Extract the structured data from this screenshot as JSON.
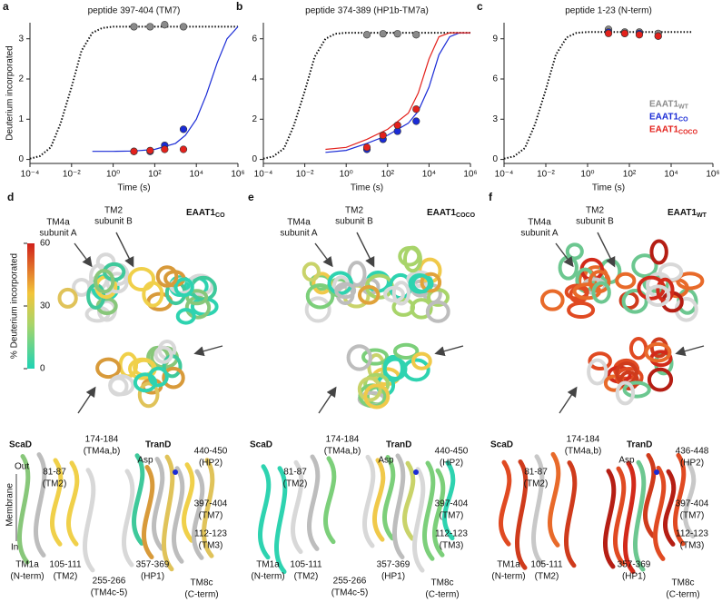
{
  "chart_data": [
    {
      "type": "scatter",
      "letter": "a",
      "title": "peptide 397-404 (TM7)",
      "x_label": "Time (s)",
      "y_label": "Deuterium incorporated",
      "xscale": "log",
      "xlim": [
        0.0001,
        1000000
      ],
      "xticks": [
        {
          "value": 0.0001,
          "label": "10⁻⁴"
        },
        {
          "value": 0.01,
          "label": "10⁻²"
        },
        {
          "value": 1,
          "label": "10⁰"
        },
        {
          "value": 100,
          "label": "10²"
        },
        {
          "value": 10000,
          "label": "10⁴"
        },
        {
          "value": 1000000,
          "label": "10⁶"
        }
      ],
      "ylim": [
        -0.1,
        3.4
      ],
      "yticks": [
        0,
        1,
        2,
        3
      ],
      "series": [
        {
          "name": "EAAT1",
          "subscript": "WT",
          "color": "#8a8a8a",
          "x": [
            10,
            60,
            300,
            2400
          ],
          "values": [
            3.3,
            3.3,
            3.35,
            3.3
          ]
        },
        {
          "name": "EAAT1",
          "subscript": "CO",
          "color": "#1a2bd6",
          "x": [
            10,
            60,
            300,
            2400
          ],
          "values": [
            0.2,
            0.2,
            0.35,
            0.75
          ]
        },
        {
          "name": "EAAT1",
          "subscript": "COCO",
          "color": "#e3211c",
          "x": [
            10,
            60,
            300,
            2400
          ],
          "values": [
            0.2,
            0.22,
            0.25,
            0.25
          ]
        }
      ],
      "fits": [
        {
          "color": "#111111",
          "dash": true,
          "x": [
            0.0001,
            0.0003,
            0.001,
            0.003,
            0.01,
            0.03,
            0.1,
            0.3,
            1,
            1000000
          ],
          "values": [
            0.02,
            0.08,
            0.3,
            0.9,
            1.8,
            2.7,
            3.15,
            3.27,
            3.3,
            3.3
          ]
        },
        {
          "color": "#1a2bd6",
          "dash": false,
          "x": [
            0.1,
            1,
            10,
            100,
            1000,
            3000,
            10000,
            30000,
            100000,
            300000,
            1000000
          ],
          "values": [
            0.2,
            0.2,
            0.21,
            0.25,
            0.4,
            0.6,
            1.0,
            1.6,
            2.4,
            3.0,
            3.3
          ]
        }
      ]
    },
    {
      "type": "scatter",
      "letter": "b",
      "title": "peptide 374-389 (HP1b-TM7a)",
      "x_label": "Time (s)",
      "xscale": "log",
      "xlim": [
        0.0001,
        1000000
      ],
      "xticks": [
        {
          "value": 0.0001,
          "label": "10⁻⁴"
        },
        {
          "value": 0.01,
          "label": "10⁻²"
        },
        {
          "value": 1,
          "label": "10⁰"
        },
        {
          "value": 100,
          "label": "10²"
        },
        {
          "value": 10000,
          "label": "10⁴"
        },
        {
          "value": 1000000,
          "label": "10⁶"
        }
      ],
      "ylim": [
        -0.2,
        6.8
      ],
      "yticks": [
        0,
        2,
        4,
        6
      ],
      "series": [
        {
          "name": "EAAT1",
          "subscript": "WT",
          "color": "#8a8a8a",
          "x": [
            10,
            60,
            300,
            2400
          ],
          "values": [
            6.2,
            6.25,
            6.25,
            6.2
          ]
        },
        {
          "name": "EAAT1",
          "subscript": "CO",
          "color": "#1a2bd6",
          "x": [
            10,
            60,
            300,
            2400
          ],
          "values": [
            0.5,
            1.0,
            1.4,
            1.9
          ]
        },
        {
          "name": "EAAT1",
          "subscript": "COCO",
          "color": "#e3211c",
          "x": [
            10,
            60,
            300,
            2400
          ],
          "values": [
            0.6,
            1.2,
            1.7,
            2.5
          ]
        }
      ],
      "fits": [
        {
          "color": "#111111",
          "dash": true,
          "x": [
            0.0001,
            0.0003,
            0.001,
            0.003,
            0.01,
            0.03,
            0.1,
            0.3,
            1,
            1000000
          ],
          "values": [
            0.04,
            0.15,
            0.55,
            1.7,
            3.4,
            5.1,
            6.0,
            6.25,
            6.3,
            6.3
          ]
        },
        {
          "color": "#1a2bd6",
          "dash": false,
          "x": [
            0.1,
            1,
            10,
            100,
            1000,
            3000,
            10000,
            30000,
            100000,
            300000,
            1000000
          ],
          "values": [
            0.35,
            0.45,
            0.8,
            1.2,
            1.8,
            2.4,
            3.6,
            5.2,
            6.1,
            6.3,
            6.3
          ]
        },
        {
          "color": "#e3211c",
          "dash": false,
          "x": [
            0.1,
            1,
            10,
            100,
            1000,
            3000,
            10000,
            30000,
            100000,
            300000,
            1000000
          ],
          "values": [
            0.5,
            0.6,
            1.0,
            1.5,
            2.3,
            3.3,
            5.0,
            6.1,
            6.3,
            6.3,
            6.3
          ]
        }
      ]
    },
    {
      "type": "scatter",
      "letter": "c",
      "title": "peptide 1-23 (N-term)",
      "x_label": "Time (s)",
      "xscale": "log",
      "legend": "center right",
      "xlim": [
        0.0001,
        1000000
      ],
      "xticks": [
        {
          "value": 0.0001,
          "label": "10⁻⁴"
        },
        {
          "value": 0.01,
          "label": "10⁻²"
        },
        {
          "value": 1,
          "label": "10⁰"
        },
        {
          "value": 100,
          "label": "10²"
        },
        {
          "value": 10000,
          "label": "10⁴"
        },
        {
          "value": 1000000,
          "label": "10⁶"
        }
      ],
      "ylim": [
        -0.3,
        10.2
      ],
      "yticks": [
        0,
        3,
        6,
        9
      ],
      "series": [
        {
          "name": "EAAT1",
          "subscript": "WT",
          "color": "#8a8a8a",
          "x": [
            10,
            60,
            300,
            2400
          ],
          "values": [
            9.7,
            9.5,
            9.5,
            9.4
          ]
        },
        {
          "name": "EAAT1",
          "subscript": "CO",
          "color": "#1a2bd6",
          "x": [
            10,
            60,
            300,
            2400
          ],
          "values": [
            9.5,
            9.4,
            9.4,
            9.2
          ]
        },
        {
          "name": "EAAT1",
          "subscript": "COCO",
          "color": "#e3211c",
          "x": [
            10,
            60,
            300,
            2400
          ],
          "values": [
            9.4,
            9.4,
            9.3,
            9.2
          ]
        }
      ],
      "fits": [
        {
          "color": "#111111",
          "dash": true,
          "x": [
            0.0001,
            0.0003,
            0.001,
            0.003,
            0.01,
            0.03,
            0.1,
            0.3,
            1,
            100000
          ],
          "values": [
            0.06,
            0.23,
            0.85,
            2.6,
            5.2,
            7.8,
            9.1,
            9.45,
            9.5,
            9.5
          ]
        }
      ]
    }
  ],
  "colorbar": {
    "label": "% Deuterium incorporated",
    "ticks": [
      0,
      30,
      60
    ]
  },
  "membrane": {
    "out": "Out",
    "membrane": "Membrane",
    "in": "In"
  },
  "structures": [
    {
      "letter": "d",
      "title": "EAAT1",
      "title_sub": "CO",
      "tm4a": [
        "TM4a",
        "subunit A"
      ],
      "tm2": [
        "TM2",
        "subunit B"
      ],
      "scad": "ScaD",
      "trand": "TranD",
      "callouts": [
        {
          "lines": [
            "174-184",
            "(TM4a,b)"
          ]
        },
        {
          "lines": [
            "Asp"
          ]
        },
        {
          "lines": [
            "440-450",
            "(HP2)"
          ]
        },
        {
          "lines": [
            "81-87",
            "(TM2)"
          ]
        },
        {
          "lines": [
            "397-404",
            "(TM7)"
          ]
        },
        {
          "lines": [
            "112-123",
            "(TM3)"
          ]
        },
        {
          "lines": [
            "TM1a",
            "(N-term)"
          ]
        },
        {
          "lines": [
            "105-111",
            "(TM2)"
          ]
        },
        {
          "lines": [
            "255-266",
            "(TM4c-5)"
          ]
        },
        {
          "lines": [
            "357-369",
            "(HP1)"
          ]
        },
        {
          "lines": [
            "TM8c",
            "(C-term)"
          ]
        }
      ]
    },
    {
      "letter": "e",
      "title": "EAAT1",
      "title_sub": "COCO",
      "tm4a": [
        "TM4a",
        "subunit A"
      ],
      "tm2": [
        "TM2",
        "subunit B"
      ],
      "scad": "ScaD",
      "trand": "TranD",
      "callouts": [
        {
          "lines": [
            "174-184",
            "(TM4a,b)"
          ]
        },
        {
          "lines": [
            "Asp"
          ]
        },
        {
          "lines": [
            "440-450",
            "(HP2)"
          ]
        },
        {
          "lines": [
            "81-87",
            "(TM2)"
          ]
        },
        {
          "lines": [
            "397-404",
            "(TM7)"
          ]
        },
        {
          "lines": [
            "112-123",
            "(TM3)"
          ]
        },
        {
          "lines": [
            "TM1a",
            "(N-term)"
          ]
        },
        {
          "lines": [
            "105-111",
            "(TM2)"
          ]
        },
        {
          "lines": [
            "255-266",
            "(TM4c-5)"
          ]
        },
        {
          "lines": [
            "357-369",
            "(HP1)"
          ]
        },
        {
          "lines": [
            "TM8c",
            "(C-term)"
          ]
        }
      ]
    },
    {
      "letter": "f",
      "title": "EAAT1",
      "title_sub": "WT",
      "tm4a": [
        "TM4a",
        "subunit A"
      ],
      "tm2": [
        "TM2",
        "subunit B"
      ],
      "scad": "ScaD",
      "trand": "TranD",
      "callouts": [
        {
          "lines": [
            "174-184",
            "(TM4a,b)"
          ]
        },
        {
          "lines": [
            "Asp"
          ]
        },
        {
          "lines": [
            "436-448",
            "(HP2)"
          ]
        },
        {
          "lines": [
            "81-87",
            "(TM2)"
          ]
        },
        {
          "lines": [
            "397-404",
            "(TM7)"
          ]
        },
        {
          "lines": [
            "112-123",
            "(TM3)"
          ]
        },
        {
          "lines": [
            "TM1a",
            "(N-term)"
          ]
        },
        {
          "lines": [
            "105-111",
            "(TM2)"
          ]
        },
        {
          "lines": [
            "357-369",
            "(HP1)"
          ]
        },
        {
          "lines": [
            "TM8c",
            "(C-term)"
          ]
        }
      ]
    }
  ]
}
